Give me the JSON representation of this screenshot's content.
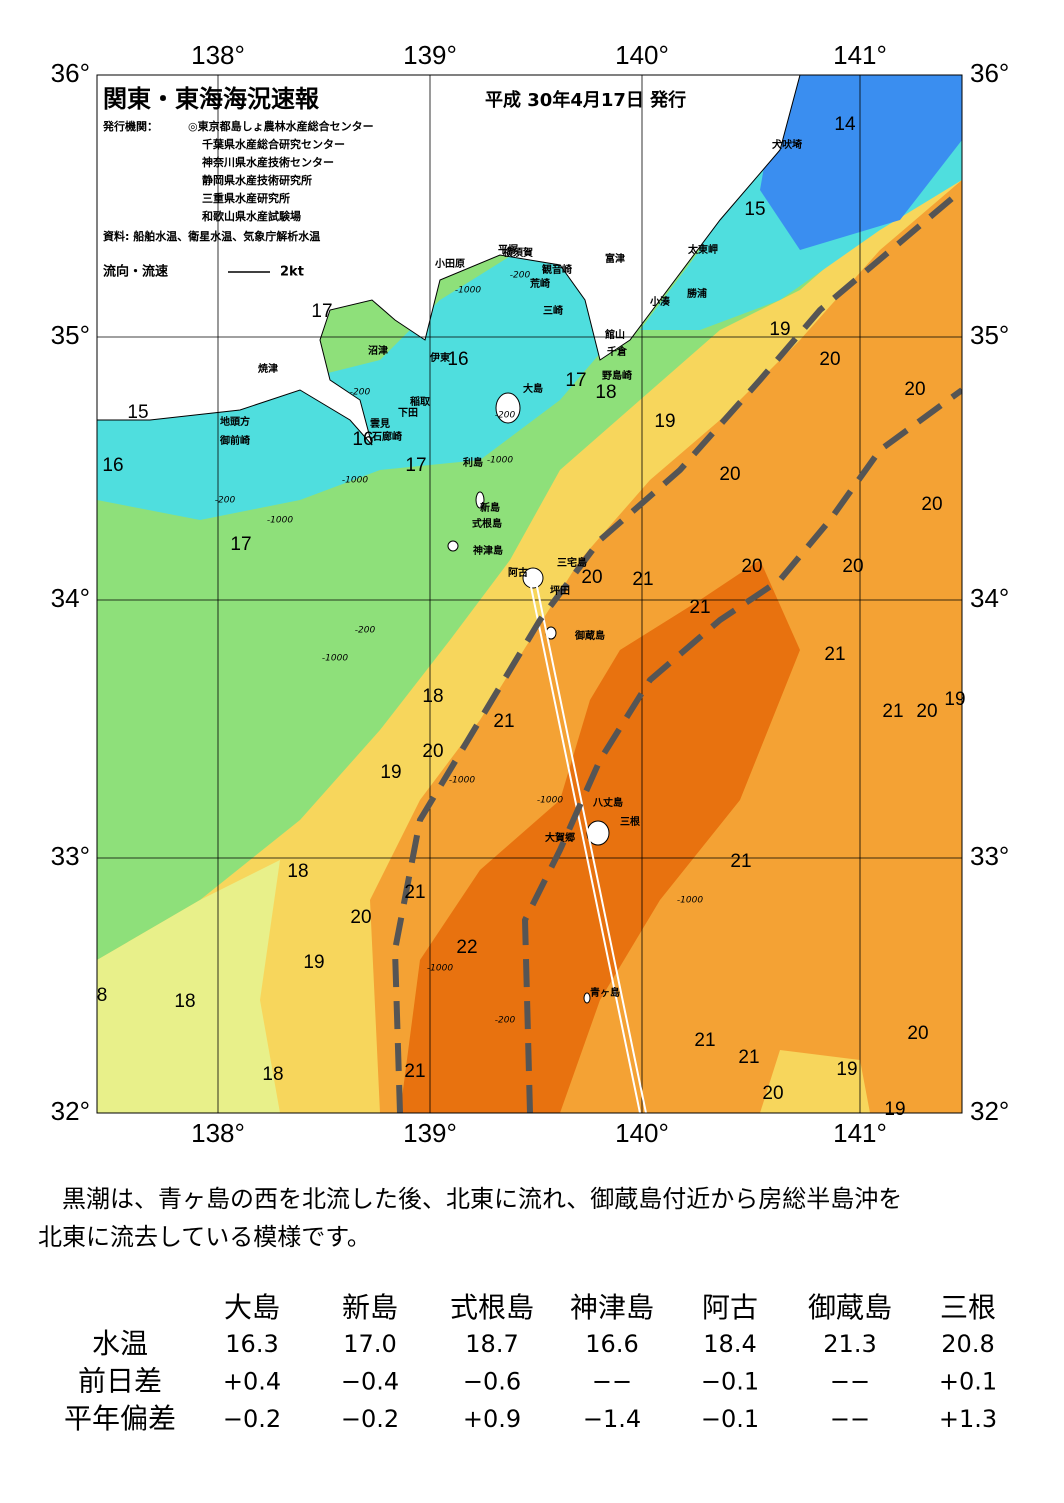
{
  "map": {
    "title": "関東・東海海況速報",
    "date": "平成 30年4月17日 発行",
    "publisher_label": "発行機関：",
    "publishers": [
      "◎東京都島しょ農林水産総合センター",
      "千葉県水産総合研究センター",
      "神奈川県水産技術センター",
      "静岡県水産技術研究所",
      "三重県水産研究所",
      "和歌山県水産試験場"
    ],
    "sources": "資料: 船舶水温、衛星水温、気象庁解析水温",
    "legend": "流向・流速",
    "legend_scale": "2kt",
    "lon_labels": [
      "138°",
      "139°",
      "140°",
      "141°"
    ],
    "lat_labels": [
      "36°",
      "35°",
      "34°",
      "33°",
      "32°"
    ],
    "place_names": [
      "犬吠埼",
      "太東岬",
      "勝浦",
      "小湊",
      "富津",
      "横須賀",
      "観音崎",
      "平塚",
      "荒崎",
      "三崎",
      "小田原",
      "館山",
      "千倉",
      "野島崎",
      "沼津",
      "伊東",
      "焼津",
      "稲取",
      "下田",
      "雲見",
      "石廊崎",
      "地頭方",
      "御前崎",
      "大島",
      "利島",
      "新島",
      "式根島",
      "神津島",
      "三宅島",
      "阿古",
      "坪田",
      "御蔵島",
      "八丈島",
      "三根",
      "大賀郷",
      "青ヶ島"
    ],
    "isotherm_labels": [
      "14",
      "15",
      "19",
      "20",
      "20",
      "20",
      "20",
      "20",
      "20",
      "21",
      "21",
      "20",
      "21",
      "21",
      "20",
      "19",
      "18",
      "17",
      "16",
      "17",
      "15",
      "16",
      "16",
      "17",
      "17",
      "18",
      "20",
      "19",
      "21",
      "21",
      "18",
      "20",
      "21",
      "22",
      "19",
      "18",
      "8",
      "18",
      "21",
      "21",
      "21",
      "20",
      "19",
      "20",
      "19",
      "19"
    ],
    "depth_labels": [
      "-200",
      "-1000",
      "-200",
      "-1000",
      "-200",
      "-1000",
      "-200",
      "-1000",
      "-1000",
      "-1000",
      "-1000",
      "-1000",
      "-200",
      "-200",
      "-1000"
    ]
  },
  "summary": [
    "　黒潮は、青ヶ島の西を北流した後、北東に流れ、御蔵島付近から房総半島沖を",
    "北東に流去している模様です。"
  ],
  "table": {
    "columns": [
      "大島",
      "新島",
      "式根島",
      "神津島",
      "阿古",
      "御蔵島",
      "三根"
    ],
    "rows": [
      {
        "label": "水温",
        "values": [
          "16.3",
          "17.0",
          "18.7",
          "16.6",
          "18.4",
          "21.3",
          "20.8"
        ]
      },
      {
        "label": "前日差",
        "values": [
          "+0.4",
          "−0.4",
          "−0.6",
          "−−",
          "−0.1",
          "−−",
          "+0.1"
        ]
      },
      {
        "label": "平年偏差",
        "values": [
          "−0.2",
          "−0.2",
          "+0.9",
          "−1.4",
          "−0.1",
          "−−",
          "+1.3"
        ]
      }
    ]
  }
}
